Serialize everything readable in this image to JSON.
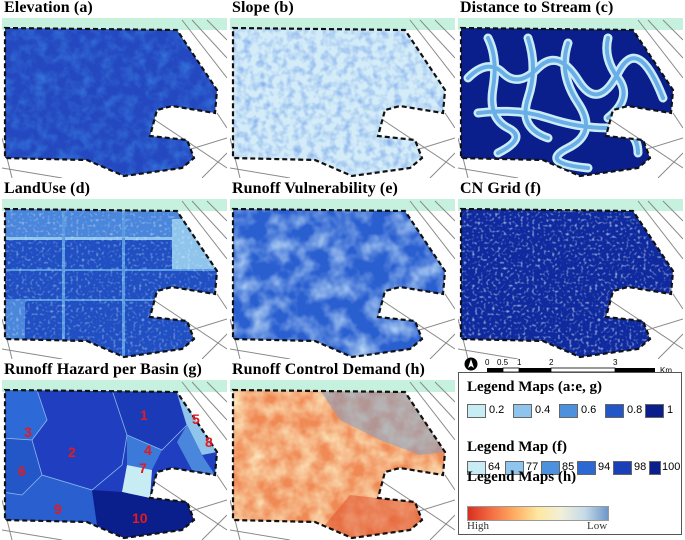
{
  "panels": [
    {
      "title": "Elevation (a)"
    },
    {
      "title": "Slope (b)"
    },
    {
      "title": "Distance to Stream (c)"
    },
    {
      "title": "LandUse (d)"
    },
    {
      "title": "Runoff Vulnerability (e)"
    },
    {
      "title": "CN Grid (f)"
    },
    {
      "title": "Runoff Hazard per Basin (g)"
    },
    {
      "title": "Runoff Control Demand (h)"
    }
  ],
  "basins": [
    "1",
    "2",
    "3",
    "4",
    "5",
    "6",
    "7",
    "8",
    "9",
    "10"
  ],
  "scale": {
    "ticks": [
      "0",
      "0.5",
      "1",
      "2",
      "3"
    ],
    "unit": "Km"
  },
  "legend_ae": {
    "title": "Legend Maps (a:e, g)",
    "items": [
      {
        "label": "0.2",
        "color": "#c8ecf4"
      },
      {
        "label": "0.4",
        "color": "#8fc4ec"
      },
      {
        "label": "0.6",
        "color": "#4c90de"
      },
      {
        "label": "0.8",
        "color": "#2356c6"
      },
      {
        "label": "1",
        "color": "#0a1f8c"
      }
    ]
  },
  "legend_f": {
    "title": "Legend Map (f)",
    "items": [
      {
        "label": "64",
        "color": "#c8ecf4"
      },
      {
        "label": "77",
        "color": "#8fc4ec"
      },
      {
        "label": "85",
        "color": "#4c90de"
      },
      {
        "label": "94",
        "color": "#2b68d4"
      },
      {
        "label": "98",
        "color": "#1a3fb8"
      },
      {
        "label": "100",
        "color": "#0a1f8c"
      }
    ]
  },
  "legend_h": {
    "title": "Legend Maps (h)",
    "high": "High",
    "low": "Low"
  },
  "colors": {
    "teal_bg": "#c6f1de",
    "road": "#8a8a8a",
    "boundary": "#111111"
  }
}
